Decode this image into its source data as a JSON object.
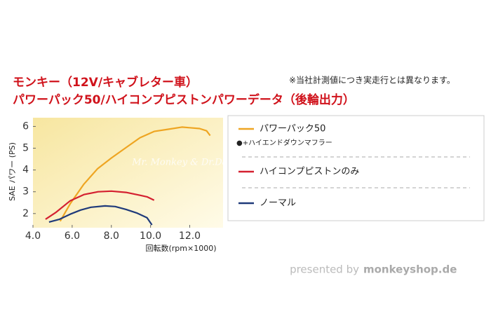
{
  "chart_data": {
    "type": "line",
    "title": "モンキー（12V/キャブレター車）",
    "subtitle": "パワーパック50/ハイコンプピストンパワーデータ（後輪出力）",
    "note": "※当社計測値につき実走行とは異なります。",
    "x_label": "回転数(rpm×1000)",
    "y_label": "SAE パワー (PS)",
    "watermark": "Mr. Monkey & Dr.Dax",
    "footer": {
      "prefix": "presented by",
      "brand": "monkeyshop.de"
    },
    "xlim": [
      4,
      13.7
    ],
    "ylim": [
      1.35,
      6.4
    ],
    "xticks": [
      {
        "value": 4,
        "label": "4.0"
      },
      {
        "value": 6,
        "label": "6.0"
      },
      {
        "value": 8,
        "label": "8.0"
      },
      {
        "value": 10,
        "label": "10.0"
      },
      {
        "value": 12,
        "label": "12.0"
      }
    ],
    "yticks": [
      2,
      3,
      4,
      5,
      6
    ],
    "series": [
      {
        "name": "パワーパック50",
        "note": "●+ハイエンドダウンマフラー",
        "color": "#eea522",
        "x": [
          5.39,
          5.9,
          6.6,
          7.3,
          8.0,
          8.75,
          9.46,
          10.18,
          10.9,
          11.6,
          12.0,
          12.5,
          12.86,
          13.04
        ],
        "values": [
          1.65,
          2.45,
          3.35,
          4.06,
          4.55,
          5.03,
          5.48,
          5.77,
          5.87,
          5.97,
          5.94,
          5.9,
          5.8,
          5.58
        ]
      },
      {
        "name": "ハイコンプピストンのみ",
        "color": "#d42030",
        "x": [
          4.64,
          5.18,
          5.89,
          6.6,
          7.32,
          8.0,
          8.75,
          9.46,
          9.82,
          10.18
        ],
        "values": [
          1.74,
          2.06,
          2.58,
          2.87,
          3.0,
          3.03,
          2.97,
          2.84,
          2.77,
          2.61
        ]
      },
      {
        "name": "ノーマル",
        "color": "#1f3a7a",
        "x": [
          4.82,
          5.36,
          5.9,
          6.43,
          6.96,
          7.68,
          8.2,
          8.75,
          9.29,
          9.82,
          10.07
        ],
        "values": [
          1.61,
          1.74,
          1.97,
          2.16,
          2.29,
          2.35,
          2.32,
          2.19,
          2.03,
          1.81,
          1.48
        ]
      }
    ]
  }
}
